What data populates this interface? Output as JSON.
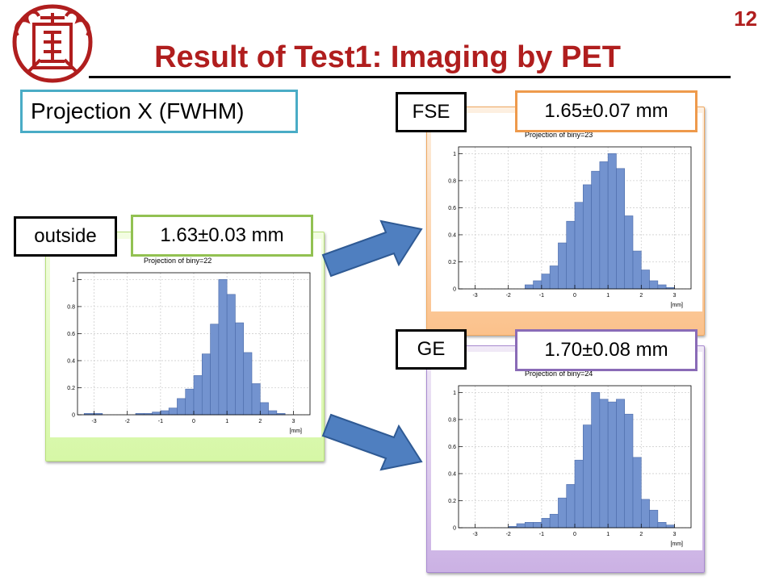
{
  "page": {
    "number": "12",
    "title": "Result of Test1: Imaging by PET",
    "subtitle": "Projection X (FWHM)"
  },
  "colors": {
    "title": "#b01e1e",
    "hist_fill": "#7393cf",
    "hist_edge": "#4a6aa8",
    "outside": "#92c152",
    "fse": "#ee9a4c",
    "ge": "#8a6bb7",
    "subtitle_border": "#4aacc6",
    "arrow": "#4f7fc0"
  },
  "icons": {
    "logo": "university-seal-icon",
    "arrow": "right-arrow-icon"
  },
  "labels": {
    "outside": "outside",
    "outside_value": "1.63±0.03 mm",
    "fse": "FSE",
    "fse_value": "1.65±0.07 mm",
    "ge": "GE",
    "ge_value": "1.70±0.08 mm"
  },
  "chart_data": [
    {
      "id": "outside",
      "type": "bar",
      "title": "Projection of biny=22",
      "xlabel": "[mm]",
      "xlim": [
        -3.5,
        3.5
      ],
      "ylim": [
        0,
        1.05
      ],
      "xticks": [
        -3,
        -2,
        -1,
        0,
        1,
        2,
        3
      ],
      "yticks": [
        0,
        0.2,
        0.4,
        0.6,
        0.8,
        1
      ],
      "bin_edges": [
        -3.3,
        -3.0,
        -2.75,
        -2.5,
        -2.25,
        -2.0,
        -1.75,
        -1.5,
        -1.25,
        -1.0,
        -0.75,
        -0.5,
        -0.25,
        0.0,
        0.25,
        0.5,
        0.75,
        1.0,
        1.25,
        1.5,
        1.75,
        2.0,
        2.25,
        2.5,
        2.75,
        3.0
      ],
      "values": [
        0.01,
        0.01,
        0.0,
        0.0,
        0.0,
        0.0,
        0.01,
        0.01,
        0.02,
        0.03,
        0.05,
        0.12,
        0.19,
        0.29,
        0.45,
        0.67,
        1.0,
        0.89,
        0.68,
        0.46,
        0.23,
        0.09,
        0.03,
        0.01,
        0.0
      ]
    },
    {
      "id": "fse",
      "type": "bar",
      "title": "Projection of biny=23",
      "xlabel": "[mm]",
      "xlim": [
        -3.5,
        3.5
      ],
      "ylim": [
        0,
        1.05
      ],
      "xticks": [
        -3,
        -2,
        -1,
        0,
        1,
        2,
        3
      ],
      "yticks": [
        0,
        0.2,
        0.4,
        0.6,
        0.8,
        1
      ],
      "bin_edges": [
        -1.5,
        -1.25,
        -1.0,
        -0.75,
        -0.5,
        -0.25,
        0.0,
        0.25,
        0.5,
        0.75,
        1.0,
        1.25,
        1.5,
        1.75,
        2.0,
        2.25,
        2.5,
        2.75,
        3.0
      ],
      "values": [
        0.03,
        0.06,
        0.11,
        0.17,
        0.34,
        0.5,
        0.64,
        0.77,
        0.87,
        0.94,
        1.0,
        0.89,
        0.54,
        0.28,
        0.14,
        0.06,
        0.03,
        0.01
      ]
    },
    {
      "id": "ge",
      "type": "bar",
      "title": "Projection of biny=24",
      "xlabel": "[mm]",
      "xlim": [
        -3.5,
        3.5
      ],
      "ylim": [
        0,
        1.05
      ],
      "xticks": [
        -3,
        -2,
        -1,
        0,
        1,
        2,
        3
      ],
      "yticks": [
        0,
        0.2,
        0.4,
        0.6,
        0.8,
        1
      ],
      "bin_edges": [
        -2.0,
        -1.75,
        -1.5,
        -1.25,
        -1.0,
        -0.75,
        -0.5,
        -0.25,
        0.0,
        0.25,
        0.5,
        0.75,
        1.0,
        1.25,
        1.5,
        1.75,
        2.0,
        2.25,
        2.5,
        2.75,
        3.0
      ],
      "values": [
        0.01,
        0.03,
        0.04,
        0.04,
        0.07,
        0.1,
        0.22,
        0.32,
        0.5,
        0.76,
        1.0,
        0.95,
        0.93,
        0.95,
        0.84,
        0.52,
        0.21,
        0.13,
        0.04,
        0.02
      ]
    }
  ]
}
